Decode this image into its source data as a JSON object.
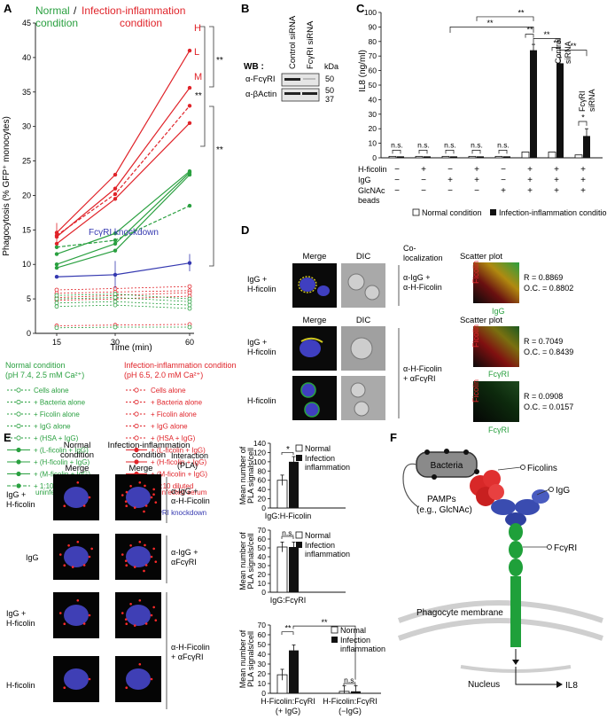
{
  "panels": {
    "A": "A",
    "B": "B",
    "C": "C",
    "D": "D",
    "E": "E",
    "F": "F"
  },
  "colors": {
    "normal": "#2aa040",
    "infection": "#e0242a",
    "knockdown": "#3438b0",
    "gray": "#777777"
  },
  "panelA": {
    "title_normal": "Normal",
    "title_slash": " / ",
    "title_infection": "Infection-inflammation",
    "subtitle_normal": "condition",
    "subtitle_infection": "condition",
    "ylabel": "Phagocytosis (% GFP⁺ monocytes)",
    "xlabel": "Time (min)",
    "yticks": [
      "0",
      "5",
      "10",
      "15",
      "20",
      "25",
      "30",
      "35",
      "40",
      "45"
    ],
    "xticks": [
      "15",
      "30",
      "60"
    ],
    "label_H": "H",
    "label_L": "L",
    "label_M": "M",
    "knockdown_label": "FcγRI knockdown",
    "sig1": "**",
    "sig2": "**",
    "sig3": "**"
  },
  "chart_data": {
    "type": "line",
    "xlabel": "Time (min)",
    "ylabel": "Phagocytosis (% GFP+ monocytes)",
    "x": [
      15,
      30,
      60
    ],
    "ylim": [
      0,
      45
    ],
    "series": [
      {
        "name": "(H-ficolin + IgG) infection",
        "values": [
          14.6,
          23.0,
          41.0
        ]
      },
      {
        "name": "(L-ficolin + IgG) infection",
        "values": [
          14.0,
          21.0,
          35.6
        ]
      },
      {
        "name": "(M-ficolin + IgG) infection",
        "values": [
          13.0,
          19.5,
          30.5
        ]
      },
      {
        "name": "1:10 diluted uninfected serum infection",
        "values": [
          14.2,
          20.2,
          33.0
        ]
      },
      {
        "name": "(L-ficolin + IgG) normal",
        "values": [
          11.5,
          14.5,
          23.5
        ]
      },
      {
        "name": "(H-ficolin + IgG) normal",
        "values": [
          10.0,
          13.0,
          23.3
        ]
      },
      {
        "name": "(M-ficolin + IgG) normal",
        "values": [
          9.5,
          12.0,
          23.0
        ]
      },
      {
        "name": "1:10 diluted uninfected serum normal",
        "values": [
          12.5,
          13.5,
          18.5
        ]
      },
      {
        "name": "FcγRI knockdown",
        "values": [
          8.2,
          8.5,
          10.2
        ]
      },
      {
        "name": "(HSA + IgG) infection",
        "values": [
          6.3,
          6.5,
          6.8
        ]
      },
      {
        "name": "IgG alone infection",
        "values": [
          5.8,
          6.0,
          6.2
        ]
      },
      {
        "name": "Ficolin alone infection",
        "values": [
          5.2,
          5.5,
          5.9
        ]
      },
      {
        "name": "Bacteria alone infection",
        "values": [
          4.8,
          5.0,
          5.4
        ]
      },
      {
        "name": "(HSA + IgG) normal",
        "values": [
          5.5,
          5.7,
          5.0
        ]
      },
      {
        "name": "IgG alone normal",
        "values": [
          5.0,
          5.2,
          4.6
        ]
      },
      {
        "name": "Ficolin alone normal",
        "values": [
          4.4,
          4.6,
          4.1
        ]
      },
      {
        "name": "Bacteria alone normal",
        "values": [
          3.9,
          4.1,
          3.6
        ]
      },
      {
        "name": "Cells alone infection",
        "values": [
          1.1,
          1.2,
          1.3
        ]
      },
      {
        "name": "Cells alone normal",
        "values": [
          0.8,
          0.9,
          0.9
        ]
      }
    ]
  },
  "legendA": {
    "normal_title": "Normal condition",
    "normal_sub": "(pH 7.4, 2.5 mM Ca²⁺)",
    "inf_title": "Infection-inflammation condition",
    "inf_sub": "(pH 6.5, 2.0 mM Ca²⁺)",
    "items": [
      "Cells alone",
      "+ Bacteria alone",
      "+ Ficolin alone",
      "+ IgG alone",
      "+ (HSA + IgG)",
      "+ (L-ficolin + IgG)",
      "+ (H-ficolin + IgG)",
      "+ (M-ficolin + IgG)",
      "+ 1:10 diluted"
    ],
    "extra": "uninfected serum",
    "knockdown": "FcγRI knockdown"
  },
  "panelB": {
    "wb": "WB :",
    "col1": "Control siRNA",
    "col2": "FcγRI siRNA",
    "kda": "kDa",
    "row1": "α-FcγRI",
    "row2": "α-βActin",
    "m1": "50",
    "m2": "50",
    "m3": "37"
  },
  "panelC": {
    "ylabel": "IL8 (ng/ml)",
    "yticks": [
      "0",
      "10",
      "20",
      "30",
      "40",
      "50",
      "60",
      "70",
      "80",
      "90",
      "100"
    ],
    "ns": "n.s.",
    "star2": "**",
    "star1": "*",
    "control_sirna_1": "Control",
    "control_sirna_2": "siRNA",
    "fcgr_sirna_1": "FcγRI",
    "fcgr_sirna_2": "siRNA",
    "row_labels": [
      "H-ficolin",
      "IgG",
      "GlcNAc",
      "beads"
    ],
    "legend_normal": "Normal condition",
    "legend_inf": "Infection-inflammation condition",
    "normal_vals": [
      1,
      1,
      1,
      1,
      1,
      4,
      4,
      2
    ],
    "inf_vals": [
      1,
      1,
      1,
      1,
      1,
      74,
      65,
      15
    ]
  },
  "panelD": {
    "merge": "Merge",
    "dic": "DIC",
    "coloc1": "Co-",
    "coloc2": "localization",
    "scatter": "Scatter plot",
    "row1_lbl1": "IgG +",
    "row1_lbl2": "H-ficolin",
    "row1_ab1": "α-IgG +",
    "row1_ab2": "α-H-Ficolin",
    "row2_lbl1": "IgG +",
    "row2_lbl2": "H-ficolin",
    "row3_lbl": "H-ficolin",
    "row23_ab1": "α-H-Ficolin",
    "row23_ab2": "+ αFcγRI",
    "sp1_r": "R = 0.8869",
    "sp1_oc": "O.C. = 0.8802",
    "sp2_r": "R = 0.7049",
    "sp2_oc": "O.C. = 0.8439",
    "sp3_r": "R = 0.0908",
    "sp3_oc": "O.C. = 0.0157",
    "y_ficolin": "Ficolin",
    "x_igg": "IgG",
    "x_fcgr": "FcγRI"
  },
  "panelE": {
    "col1a": "Normal",
    "col1b": "condition",
    "col2a": "Infection-inflammation",
    "col2b": "condition",
    "merge": "Merge",
    "inter1": "Interaction",
    "inter2": "(PLA)",
    "r1a": "IgG +",
    "r1b": "H-ficolin",
    "r2": "IgG",
    "r3a": "IgG +",
    "r3b": "H-ficolin",
    "r4": "H-ficolin",
    "ab1a": "α-IgG +",
    "ab1b": "α-H-Ficolin",
    "ab2a": "α-IgG +",
    "ab2b": "αFcγRI",
    "ab3a": "α-H-Ficolin",
    "ab3b": "+ αFcγRI",
    "ylab1": "Mean number of",
    "ylab2": "PLA signals/cell",
    "leg_normal": "Normal",
    "leg_inf1": "Infection",
    "leg_inf2": "inflammation",
    "g1_label": "IgG:H-Ficolin",
    "g2_label": "IgG:FcγRI",
    "g3a_1": "H-Ficolin:FcγRI",
    "g3a_2": "(+ IgG)",
    "g3b_1": "H-Ficolin:FcγRI",
    "g3b_2": "(−IgG)",
    "yt1": [
      "0",
      "20",
      "40",
      "60",
      "80",
      "100",
      "120",
      "140"
    ],
    "yt2": [
      "0",
      "10",
      "20",
      "30",
      "40",
      "50",
      "60",
      "70"
    ],
    "yt3": [
      "0",
      "10",
      "20",
      "30",
      "40",
      "50",
      "60",
      "70"
    ],
    "ns": "n.s.",
    "star1": "*",
    "star2": "**",
    "vals1": [
      60,
      100
    ],
    "vals2": [
      51,
      51
    ],
    "vals3": [
      19,
      44,
      2,
      2
    ]
  },
  "panelF": {
    "bacteria": "Bacteria",
    "ficolins": "Ficolins",
    "pamps1": "PAMPs",
    "pamps2": "(e.g., GlcNAc)",
    "igg": "IgG",
    "fcgr": "FcγRI",
    "membrane": "Phagocyte membrane",
    "nucleus": "Nucleus",
    "il8": "IL8"
  }
}
